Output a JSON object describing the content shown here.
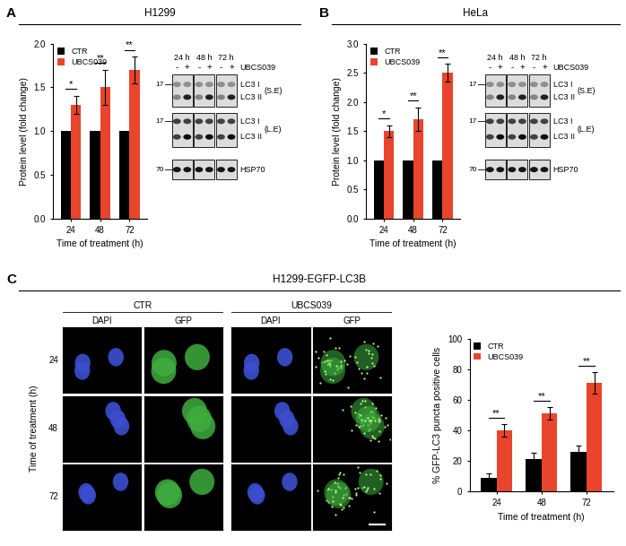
{
  "panels": [
    {
      "label": "A",
      "header": "H1299"
    },
    {
      "label": "B",
      "header": "HeLa"
    },
    {
      "label": "C",
      "header": "H1299-EGFP-LC3B"
    }
  ],
  "chart_data": [
    {
      "type": "bar",
      "x_label": "Time of treatment (h)",
      "y_label": "Protein level (fold change)",
      "categories": [
        "24",
        "48",
        "72"
      ],
      "series": [
        {
          "name": "CTR",
          "color": "#000000",
          "values": [
            1.0,
            1.0,
            1.0
          ]
        },
        {
          "name": "UBCS039",
          "color": "#e8452c",
          "values": [
            1.3,
            1.5,
            1.7
          ],
          "errors": [
            0.1,
            0.2,
            0.15
          ]
        }
      ],
      "ylim": [
        0,
        2.0
      ],
      "yticks": [
        {
          "value": 0,
          "label": "0.0"
        },
        0.5,
        {
          "value": 1.0,
          "label": "1.0"
        },
        1.5,
        {
          "value": 2.0,
          "label": "2.0"
        }
      ],
      "legend": "upper left",
      "annotations": [
        "*",
        "**",
        "**"
      ]
    },
    {
      "type": "bar",
      "x_label": "Time of treatment (h)",
      "y_label": "Protein level (fold change)",
      "categories": [
        "24",
        "48",
        "72"
      ],
      "series": [
        {
          "name": "CTR",
          "color": "#000000",
          "values": [
            1.0,
            1.0,
            1.0
          ]
        },
        {
          "name": "UBCS039",
          "color": "#e8452c",
          "values": [
            1.5,
            1.7,
            2.5
          ],
          "errors": [
            0.1,
            0.2,
            0.15
          ]
        }
      ],
      "ylim": [
        0,
        3.0
      ],
      "yticks": [
        {
          "value": 0,
          "label": "0.0"
        },
        0.5,
        {
          "value": 1.0,
          "label": "1.0"
        },
        1.5,
        {
          "value": 2.0,
          "label": "2.0"
        },
        2.5,
        {
          "value": 3.0,
          "label": "3.0"
        }
      ],
      "legend": "upper left",
      "annotations": [
        "*",
        "**",
        "**"
      ]
    },
    {
      "type": "bar",
      "x_label": "Time of treatment (h)",
      "y_label": "% GFP-LC3 puncta positive cells",
      "categories": [
        "24",
        "48",
        "72"
      ],
      "series": [
        {
          "name": "CTR",
          "color": "#000000",
          "values": [
            9,
            21,
            26
          ],
          "errors": [
            3,
            4,
            4
          ]
        },
        {
          "name": "UBCS039",
          "color": "#e8452c",
          "values": [
            40,
            51,
            71
          ],
          "errors": [
            4,
            4,
            7
          ]
        }
      ],
      "ylim": [
        0,
        100
      ],
      "yticks": [
        0,
        20,
        40,
        60,
        80,
        100
      ],
      "legend": "upper left",
      "annotations": [
        "**",
        "**",
        "**"
      ]
    }
  ],
  "blots": [
    {
      "times": [
        "24 h",
        "48 h",
        "72 h"
      ],
      "lanes": [
        "-",
        "+"
      ],
      "treatment": "UBCS039",
      "bands": [
        "LC3 I",
        "LC3 II"
      ],
      "exposures": [
        "(S.E)",
        "(L.E)"
      ],
      "loading": "HSP70",
      "markers": [
        17,
        17,
        70
      ]
    },
    {
      "times": [
        "24 h",
        "48 h",
        "72 h"
      ],
      "lanes": [
        "-",
        "+"
      ],
      "treatment": "UBCS039",
      "bands": [
        "LC3 I",
        "LC3 II"
      ],
      "exposures": [
        "(S.E)",
        "(L.E)"
      ],
      "loading": "HSP70",
      "markers": [
        17,
        17,
        70
      ]
    }
  ],
  "micrographs": {
    "conditions": [
      "CTR",
      "UBCS039"
    ],
    "channels": [
      "DAPI",
      "GFP"
    ],
    "rows": [
      "24",
      "48",
      "72"
    ],
    "row_label": "Time of treatment (h)"
  }
}
